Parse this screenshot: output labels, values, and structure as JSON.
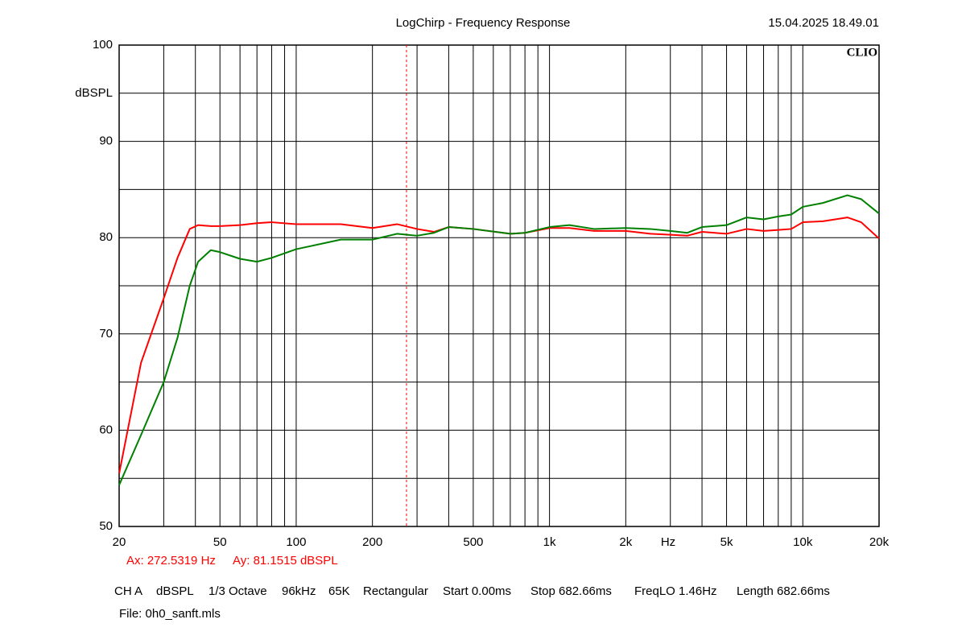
{
  "chart_data": {
    "type": "line",
    "title": "LogChirp - Frequency Response",
    "timestamp": "15.04.2025 18.49.01",
    "logo": "CLIO",
    "xlabel": "Hz",
    "ylabel": "dBSPL",
    "xscale": "log",
    "xlim": [
      20,
      20000
    ],
    "ylim": [
      50,
      100
    ],
    "grid": true,
    "xticks": [
      20,
      50,
      100,
      200,
      500,
      {
        "value": 1000,
        "label": "1k"
      },
      {
        "value": 2000,
        "label": "2k"
      },
      {
        "value": 5000,
        "label": "5k"
      },
      {
        "value": 10000,
        "label": "10k"
      },
      {
        "value": 20000,
        "label": "20k"
      }
    ],
    "minor_xgrid": [
      30,
      40,
      60,
      70,
      80,
      90,
      300,
      400,
      600,
      700,
      800,
      900,
      3000,
      4000,
      6000,
      7000,
      8000,
      9000
    ],
    "yticks": [
      50,
      60,
      70,
      80,
      90,
      100
    ],
    "minor_ygrid": [
      55,
      65,
      75,
      85,
      95
    ],
    "x": [
      20,
      24.4,
      30,
      34,
      38,
      41,
      46,
      50,
      60,
      70,
      80,
      100,
      150,
      200,
      250,
      300,
      350,
      400,
      500,
      700,
      800,
      1000,
      1200,
      1500,
      2000,
      2500,
      3000,
      3500,
      4000,
      5000,
      6000,
      7000,
      8000,
      9000,
      10000,
      12000,
      15000,
      17000,
      20000
    ],
    "series": [
      {
        "color": "#ff0000",
        "values": [
          55.5,
          67.0,
          73.7,
          77.9,
          80.9,
          81.3,
          81.2,
          81.2,
          81.3,
          81.5,
          81.6,
          81.4,
          81.4,
          81.0,
          81.4,
          80.9,
          80.6,
          81.1,
          80.9,
          80.4,
          80.5,
          81.0,
          81.0,
          80.7,
          80.7,
          80.4,
          80.3,
          80.2,
          80.6,
          80.4,
          80.9,
          80.7,
          80.8,
          80.9,
          81.6,
          81.7,
          82.1,
          81.6,
          79.9
        ]
      },
      {
        "color": "#008000",
        "values": [
          54.3,
          59.5,
          65.0,
          69.6,
          75.0,
          77.5,
          78.7,
          78.5,
          77.8,
          77.5,
          77.9,
          78.8,
          79.8,
          79.8,
          80.4,
          80.2,
          80.5,
          81.1,
          80.9,
          80.4,
          80.5,
          81.1,
          81.3,
          80.9,
          81.0,
          80.9,
          80.7,
          80.5,
          81.1,
          81.3,
          82.1,
          81.9,
          82.2,
          82.4,
          83.2,
          83.6,
          84.4,
          84.0,
          82.5
        ]
      }
    ],
    "cursor": {
      "x": 272.5319,
      "color": "#ff0000",
      "x_text": "Ax: 272.5319 Hz",
      "y_text": "Ay: 81.1515 dBSPL"
    },
    "settings": [
      "CH A",
      "dBSPL",
      "1/3 Octave",
      "96kHz",
      "65K",
      "Rectangular",
      "Start 0.00ms",
      "Stop 682.66ms",
      "FreqLO 1.46Hz",
      "Length 682.66ms"
    ],
    "file": "File: 0h0_sanft.mls"
  }
}
